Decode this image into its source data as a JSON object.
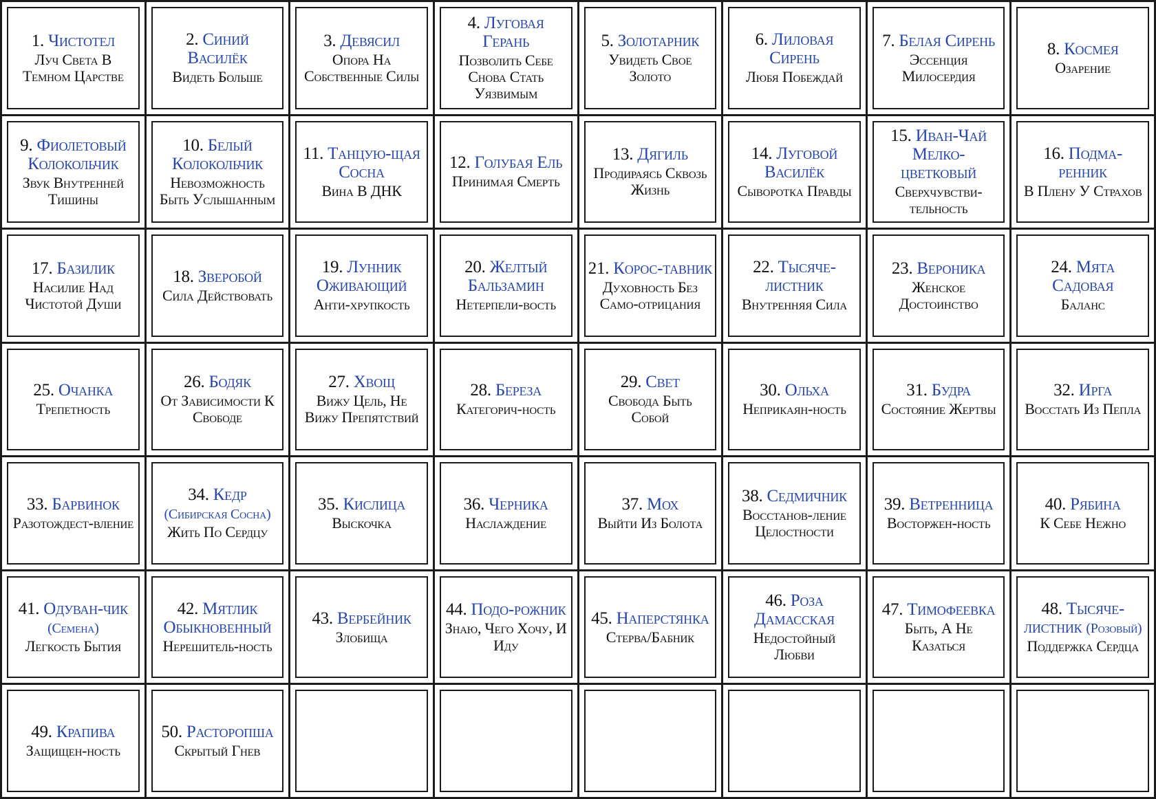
{
  "grid": {
    "columns": 8,
    "rows": 7,
    "accent_color": "#2746ad",
    "text_color": "#111111",
    "border_color": "#1a1a1a",
    "background_color": "#ffffff",
    "cards": [
      {
        "number": "1.",
        "name": "Чистотел",
        "description": "Луч Света В Темном Царстве"
      },
      {
        "number": "2.",
        "name": "Синий Василёк",
        "description": "Видеть Больше"
      },
      {
        "number": "3.",
        "name": "Девясил",
        "description": "Опора На Собственные Силы"
      },
      {
        "number": "4.",
        "name": "Луговая Герань",
        "description": "Позволить Себе Снова Стать Уязвимым"
      },
      {
        "number": "5.",
        "name": "Золотарник",
        "description": "Увидеть Свое Золото"
      },
      {
        "number": "6.",
        "name": "Лиловая Сирень",
        "description": "Любя Побеждай"
      },
      {
        "number": "7.",
        "name": "Белая Сирень",
        "description": "Эссенция Милосердия"
      },
      {
        "number": "8.",
        "name": "Космея",
        "description": "Озарение"
      },
      {
        "number": "9.",
        "name": "Фиолетовый Колокольчик",
        "description": "Звук Внутренней Тишины"
      },
      {
        "number": "10.",
        "name": "Белый Колокольчик",
        "description": "Невозможность Быть Услышанным"
      },
      {
        "number": "11.",
        "name": "Танцую-щая Сосна",
        "description": "Вина В ДНК"
      },
      {
        "number": "12.",
        "name": "Голубая Ель",
        "description": "Принимая Смерть"
      },
      {
        "number": "13.",
        "name": "Дягиль",
        "description": "Продираясь Сквозь Жизнь"
      },
      {
        "number": "14.",
        "name": "Луговой Василёк",
        "description": "Сыворотка Правды"
      },
      {
        "number": "15.",
        "name": "Иван-Чай Мелко-цветковый",
        "description": "Сверхчувстви-тельность"
      },
      {
        "number": "16.",
        "name": "Подма-ренник",
        "description": "В Плену У Страхов"
      },
      {
        "number": "17.",
        "name": "Базилик",
        "description": "Насилие Над Чистотой Души"
      },
      {
        "number": "18.",
        "name": "Зверобой",
        "description": "Сила Действовать"
      },
      {
        "number": "19.",
        "name": "Лунник Оживающий",
        "description": "Анти-хрупкость"
      },
      {
        "number": "20.",
        "name": "Желтый Бальзамин",
        "description": "Нетерпели-вость"
      },
      {
        "number": "21.",
        "name": "Корос-тавник",
        "description": "Духовность Без Само-отрицания"
      },
      {
        "number": "22.",
        "name": "Тысяче-листник",
        "description": "Внутренняя Сила"
      },
      {
        "number": "23.",
        "name": "Вероника",
        "description": "Женское Достоинство"
      },
      {
        "number": "24.",
        "name": "Мята Садовая",
        "description": "Баланс"
      },
      {
        "number": "25.",
        "name": "Очанка",
        "description": "Трепетность"
      },
      {
        "number": "26.",
        "name": "Бодяк",
        "description": "От Зависимости К Свободе"
      },
      {
        "number": "27.",
        "name": "Хвощ",
        "description": "Вижу Цель, Не Вижу Препятствий"
      },
      {
        "number": "28.",
        "name": "Береза",
        "description": "Категорич-ность"
      },
      {
        "number": "29.",
        "name": "Свет",
        "description": "Свобода Быть Собой"
      },
      {
        "number": "30.",
        "name": "Ольха",
        "description": "Неприкаян-ность"
      },
      {
        "number": "31.",
        "name": "Будра",
        "description": "Состояние Жертвы"
      },
      {
        "number": "32.",
        "name": "Ирга",
        "description": "Восстать Из Пепла"
      },
      {
        "number": "33.",
        "name": "Барвинок",
        "description": "Разотождест-вление"
      },
      {
        "number": "34.",
        "name": "Кедр",
        "note": "(Сибирская Сосна)",
        "description": "Жить По Сердцу"
      },
      {
        "number": "35.",
        "name": "Кислица",
        "description": "Выскочка"
      },
      {
        "number": "36.",
        "name": "Черника",
        "description": "Наслаждение"
      },
      {
        "number": "37.",
        "name": "Мох",
        "description": "Выйти Из Болота"
      },
      {
        "number": "38.",
        "name": "Седмичник",
        "description": "Восстанов-ление Целостности"
      },
      {
        "number": "39.",
        "name": "Ветренница",
        "description": "Восторжен-ность"
      },
      {
        "number": "40.",
        "name": "Рябина",
        "description": "К Себе Нежно"
      },
      {
        "number": "41.",
        "name": "Одуван-чик",
        "note": "(Семена)",
        "description": "Легкость Бытия"
      },
      {
        "number": "42.",
        "name": "Мятлик Обыкновенный",
        "description": "Нерешитель-ность"
      },
      {
        "number": "43.",
        "name": "Вербейник",
        "description": "Злобища"
      },
      {
        "number": "44.",
        "name": "Подо-рожник",
        "description": "Знаю, Чего Хочу, И Иду"
      },
      {
        "number": "45.",
        "name": "Наперстянка",
        "description": "Стерва/Бабник"
      },
      {
        "number": "46.",
        "name": "Роза Дамасская",
        "description": "Недостойный Любви"
      },
      {
        "number": "47.",
        "name": "Тимофеевка",
        "description": "Быть, А Не Казаться"
      },
      {
        "number": "48.",
        "name": "Тысяче-листник",
        "note": "(Розовый)",
        "description": "Поддержка Сердца"
      },
      {
        "number": "49.",
        "name": "Крапива",
        "description": "Защищен-ность"
      },
      {
        "number": "50.",
        "name": "Расторопша",
        "description": "Скрытый Гнев"
      },
      {
        "empty": true
      },
      {
        "empty": true
      },
      {
        "empty": true
      },
      {
        "empty": true
      },
      {
        "empty": true
      },
      {
        "empty": true
      }
    ]
  }
}
